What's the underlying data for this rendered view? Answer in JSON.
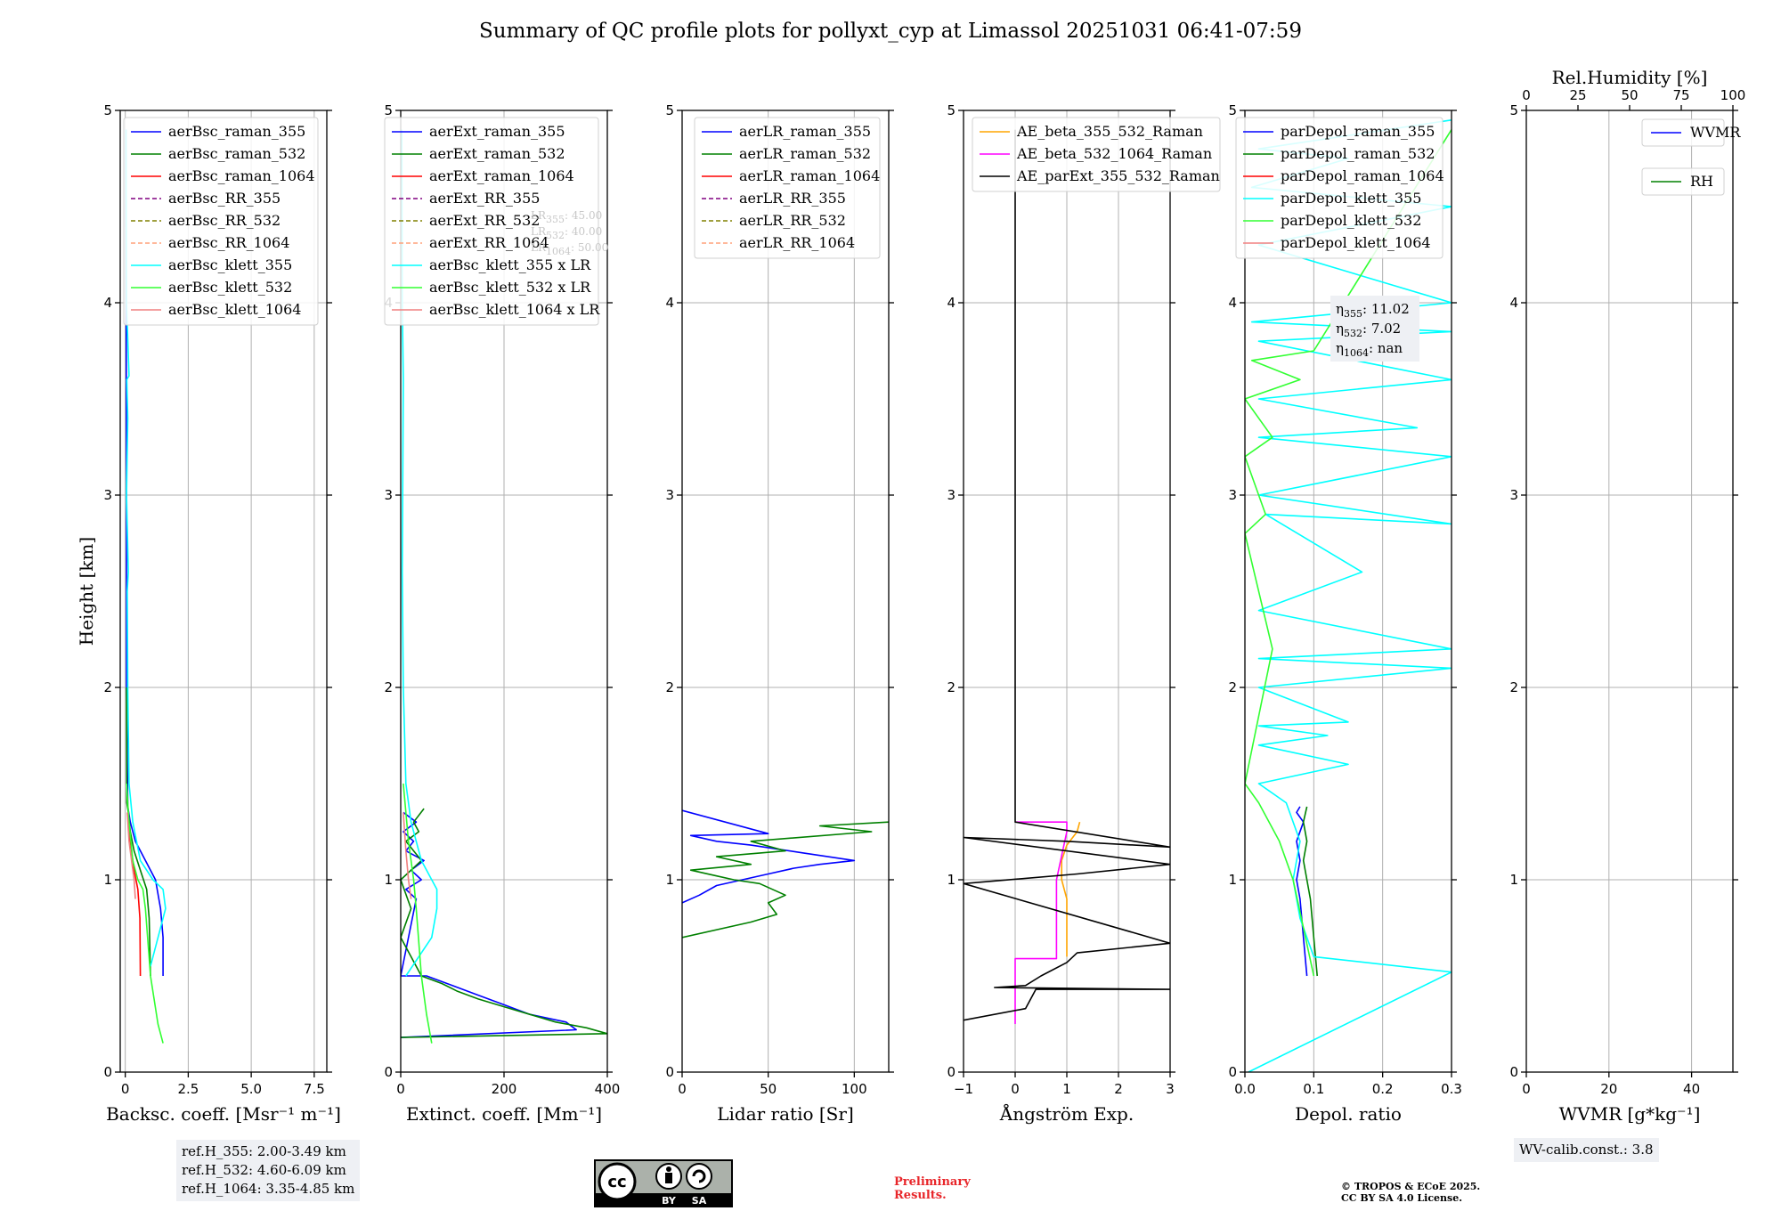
{
  "figure_title": "Summary of QC profile plots for pollyxt_cyp at Limassol 20251031 06:41-07:59",
  "colors": {
    "blue": "#0000ff",
    "green": "#008000",
    "red": "#ff0000",
    "purple": "#800080",
    "olive": "#808000",
    "salmon": "#ffa07a",
    "cyan": "#00ffff",
    "lime": "#32ff32",
    "lightcoral": "#f08080",
    "orange": "#ffa500",
    "magenta": "#ff00ff",
    "black": "#000000",
    "grid": "#b0b0b0",
    "infobox_bg": "#eef0f4",
    "prelim": "#e8262a"
  },
  "chart_data": [
    {
      "type": "line",
      "name": "backscatter",
      "xlabel": "Backsc. coeff. [Msr⁻¹ m⁻¹]",
      "ylabel": "Height [km]",
      "xlim": [
        -0.2,
        8
      ],
      "ylim": [
        0,
        5
      ],
      "xticks": [
        0,
        2.5,
        5,
        7.5
      ],
      "xtick_labels": [
        "0",
        "2.5",
        "5.0",
        "7.5"
      ],
      "yticks": [
        0,
        1,
        2,
        3,
        4,
        5
      ],
      "ytick_labels": [
        "0",
        "1",
        "2",
        "3",
        "4",
        "5"
      ],
      "legend": "top-right",
      "series": [
        {
          "name": "aerBsc_raman_355",
          "color": "blue",
          "dash": false,
          "x": [
            1.5,
            1.5,
            1.4,
            1.2,
            0.8,
            0.4,
            0.2,
            0.1,
            0.05,
            0.05,
            0.04,
            0.03
          ],
          "y": [
            0.5,
            0.7,
            0.85,
            1.0,
            1.1,
            1.2,
            1.3,
            1.38,
            2.0,
            3.0,
            3.8,
            4.9
          ]
        },
        {
          "name": "aerBsc_raman_532",
          "color": "green",
          "dash": false,
          "x": [
            1.0,
            0.95,
            0.85,
            0.6,
            0.35,
            0.2,
            0.12,
            0.06,
            0.05
          ],
          "y": [
            0.5,
            0.8,
            0.95,
            1.05,
            1.15,
            1.25,
            1.35,
            1.4,
            2.0
          ]
        },
        {
          "name": "aerBsc_raman_1064",
          "color": "red",
          "dash": false,
          "x": [
            0.6,
            0.58,
            0.5,
            0.35,
            0.2,
            0.1
          ],
          "y": [
            0.5,
            0.8,
            0.95,
            1.05,
            1.2,
            1.35
          ]
        },
        {
          "name": "aerBsc_RR_355",
          "color": "purple",
          "dash": true,
          "x": [],
          "y": []
        },
        {
          "name": "aerBsc_RR_532",
          "color": "olive",
          "dash": true,
          "x": [],
          "y": []
        },
        {
          "name": "aerBsc_RR_1064",
          "color": "salmon",
          "dash": true,
          "x": [],
          "y": []
        },
        {
          "name": "aerBsc_klett_355",
          "color": "cyan",
          "dash": false,
          "x": [
            1.0,
            1.6,
            1.5,
            1.1,
            0.6,
            0.3,
            0.15,
            0.1,
            0.08,
            0.12,
            0.05,
            0.1,
            0.06,
            0.15,
            0.05,
            0.03
          ],
          "y": [
            0.55,
            0.85,
            0.95,
            1.0,
            1.1,
            1.3,
            1.5,
            2.0,
            2.5,
            2.6,
            3.0,
            3.4,
            3.6,
            3.62,
            4.0,
            4.9
          ]
        },
        {
          "name": "aerBsc_klett_532",
          "color": "lime",
          "dash": false,
          "x": [
            1.5,
            1.3,
            1.0,
            0.8,
            0.7,
            0.5,
            0.3,
            0.15,
            0.05
          ],
          "y": [
            0.15,
            0.25,
            0.5,
            0.85,
            0.95,
            1.0,
            1.1,
            1.3,
            1.5
          ]
        },
        {
          "name": "aerBsc_klett_1064",
          "color": "lightcoral",
          "dash": false,
          "x": [
            0.4,
            0.35,
            0.25,
            0.15,
            0.08
          ],
          "y": [
            0.9,
            1.0,
            1.1,
            1.2,
            1.35
          ]
        }
      ]
    },
    {
      "type": "line",
      "name": "extinction",
      "xlabel": "Extinct. coeff. [Mm⁻¹]",
      "xlim": [
        0,
        400
      ],
      "ylim": [
        0,
        5
      ],
      "xticks": [
        0,
        200,
        400
      ],
      "xtick_labels": [
        "0",
        "200",
        "400"
      ],
      "yticks": [
        0,
        1,
        2,
        3,
        4,
        5
      ],
      "ytick_labels": [
        "0",
        "1",
        "2",
        "3",
        "4",
        "5"
      ],
      "legend": "top-right",
      "annotation": [
        "LR355: 45.00",
        "LR532: 40.00",
        "LR1064: 50.00"
      ],
      "series": [
        {
          "name": "aerExt_raman_355",
          "color": "blue",
          "dash": false,
          "x": [
            0,
            340,
            320,
            250,
            200,
            150,
            100,
            50,
            0,
            30,
            10,
            40,
            20,
            45,
            10,
            25,
            5,
            30,
            5
          ],
          "y": [
            0.18,
            0.22,
            0.26,
            0.3,
            0.35,
            0.4,
            0.45,
            0.5,
            0.5,
            0.9,
            0.95,
            1.0,
            1.05,
            1.1,
            1.15,
            1.2,
            1.25,
            1.3,
            1.35
          ]
        },
        {
          "name": "aerExt_raman_532",
          "color": "green",
          "dash": false,
          "x": [
            0,
            400,
            360,
            300,
            250,
            200,
            150,
            110,
            80,
            40,
            0,
            20,
            0,
            40,
            10,
            35,
            25,
            45
          ],
          "y": [
            0.18,
            0.2,
            0.23,
            0.26,
            0.3,
            0.34,
            0.38,
            0.42,
            0.46,
            0.5,
            0.7,
            0.85,
            1.0,
            1.1,
            1.2,
            1.25,
            1.3,
            1.37
          ]
        },
        {
          "name": "aerExt_raman_1064",
          "color": "red",
          "dash": false,
          "x": [],
          "y": []
        },
        {
          "name": "aerExt_RR_355",
          "color": "purple",
          "dash": true,
          "x": [],
          "y": []
        },
        {
          "name": "aerExt_RR_532",
          "color": "olive",
          "dash": true,
          "x": [],
          "y": []
        },
        {
          "name": "aerExt_RR_1064",
          "color": "salmon",
          "dash": true,
          "x": [],
          "y": []
        },
        {
          "name": "aerBsc_klett_355 x LR",
          "color": "cyan",
          "dash": false,
          "x": [
            10,
            60,
            70,
            70,
            60,
            40,
            20,
            10,
            5,
            3,
            5,
            3,
            2
          ],
          "y": [
            0.5,
            0.7,
            0.85,
            0.95,
            1.0,
            1.1,
            1.3,
            1.5,
            2.0,
            2.6,
            3.6,
            4.0,
            4.9
          ]
        },
        {
          "name": "aerBsc_klett_532 x LR",
          "color": "lime",
          "dash": false,
          "x": [
            60,
            50,
            40,
            30,
            25,
            15,
            5
          ],
          "y": [
            0.15,
            0.3,
            0.5,
            0.85,
            1.0,
            1.2,
            1.5
          ]
        },
        {
          "name": "aerBsc_klett_1064 x LR",
          "color": "lightcoral",
          "dash": false,
          "x": [
            20,
            15,
            10,
            5
          ],
          "y": [
            0.9,
            1.0,
            1.15,
            1.35
          ]
        }
      ]
    },
    {
      "type": "line",
      "name": "lidar_ratio",
      "xlabel": "Lidar ratio [Sr]",
      "xlim": [
        0,
        120
      ],
      "ylim": [
        0,
        5
      ],
      "xticks": [
        0,
        50,
        100
      ],
      "xtick_labels": [
        "0",
        "50",
        "100"
      ],
      "yticks": [
        0,
        1,
        2,
        3,
        4,
        5
      ],
      "ytick_labels": [
        "0",
        "1",
        "2",
        "3",
        "4",
        "5"
      ],
      "legend": "top-right",
      "series": [
        {
          "name": "aerLR_raman_355",
          "color": "blue",
          "dash": false,
          "x": [
            0,
            10,
            20,
            35,
            50,
            65,
            80,
            100,
            70,
            55,
            40,
            20,
            5,
            50,
            0
          ],
          "y": [
            0.88,
            0.92,
            0.97,
            1.0,
            1.03,
            1.06,
            1.08,
            1.1,
            1.14,
            1.16,
            1.18,
            1.2,
            1.23,
            1.24,
            1.36
          ]
        },
        {
          "name": "aerLR_raman_532",
          "color": "green",
          "dash": false,
          "x": [
            0,
            40,
            55,
            50,
            60,
            45,
            30,
            20,
            5,
            40,
            20,
            60,
            40,
            110,
            80,
            120
          ],
          "y": [
            0.7,
            0.78,
            0.82,
            0.88,
            0.92,
            0.98,
            1.0,
            1.02,
            1.05,
            1.08,
            1.12,
            1.15,
            1.2,
            1.25,
            1.28,
            1.3
          ]
        },
        {
          "name": "aerLR_raman_1064",
          "color": "red",
          "dash": false,
          "x": [],
          "y": []
        },
        {
          "name": "aerLR_RR_355",
          "color": "purple",
          "dash": true,
          "x": [],
          "y": []
        },
        {
          "name": "aerLR_RR_532",
          "color": "olive",
          "dash": true,
          "x": [],
          "y": []
        },
        {
          "name": "aerLR_RR_1064",
          "color": "salmon",
          "dash": true,
          "x": [],
          "y": []
        }
      ]
    },
    {
      "type": "line",
      "name": "angstrom",
      "xlabel": "Ångström Exp.",
      "xlim": [
        -1,
        3
      ],
      "ylim": [
        0,
        5
      ],
      "xticks": [
        -1,
        0,
        1,
        2,
        3
      ],
      "xtick_labels": [
        "−1",
        "0",
        "1",
        "2",
        "3"
      ],
      "yticks": [
        0,
        1,
        2,
        3,
        4,
        5
      ],
      "ytick_labels": [
        "0",
        "1",
        "2",
        "3",
        "4",
        "5"
      ],
      "legend": "top-left",
      "series": [
        {
          "name": "AE_beta_355_532_Raman",
          "color": "orange",
          "dash": false,
          "x": [
            1.0,
            1.0,
            0.9,
            0.9,
            1.0,
            1.2,
            1.25
          ],
          "y": [
            0.6,
            0.9,
            1.0,
            1.1,
            1.18,
            1.25,
            1.3
          ]
        },
        {
          "name": "AE_beta_532_1064_Raman",
          "color": "magenta",
          "dash": false,
          "x": [
            0,
            0,
            0.8,
            0.8,
            1.0,
            1.0,
            0,
            0
          ],
          "y": [
            0.25,
            0.59,
            0.59,
            1.0,
            1.25,
            1.3,
            1.3,
            1.3
          ]
        },
        {
          "name": "AE_parExt_355_532_Raman",
          "color": "black",
          "dash": false,
          "x": [
            0,
            0,
            3.0,
            1.0,
            -1.0,
            3.0,
            1.2,
            -1.0,
            3.0,
            1.2,
            1.0,
            0.5,
            0.2,
            -0.4,
            3.0,
            0.4,
            0.2,
            -1.0
          ],
          "y": [
            4.9,
            1.3,
            1.17,
            1.2,
            1.22,
            1.08,
            1.03,
            0.98,
            0.67,
            0.62,
            0.57,
            0.5,
            0.45,
            0.44,
            0.43,
            0.43,
            0.33,
            0.27
          ]
        }
      ]
    },
    {
      "type": "line",
      "name": "depolarization",
      "xlabel": "Depol. ratio",
      "xlim": [
        0,
        0.3
      ],
      "ylim": [
        0,
        5
      ],
      "xticks": [
        0,
        0.1,
        0.2,
        0.3
      ],
      "xtick_labels": [
        "0.0",
        "0.1",
        "0.2",
        "0.3"
      ],
      "yticks": [
        0,
        1,
        2,
        3,
        4,
        5
      ],
      "ytick_labels": [
        "0",
        "1",
        "2",
        "3",
        "4",
        "5"
      ],
      "legend": "top-right",
      "annotation": [
        "η355: 11.02",
        "η532: 7.02",
        "η1064: nan"
      ],
      "series": [
        {
          "name": "parDepol_raman_355",
          "color": "blue",
          "dash": false,
          "x": [
            0.09,
            0.085,
            0.08,
            0.075,
            0.08,
            0.075,
            0.085,
            0.075,
            0.08
          ],
          "y": [
            0.5,
            0.7,
            0.9,
            1.0,
            1.1,
            1.2,
            1.3,
            1.35,
            1.38
          ]
        },
        {
          "name": "parDepol_raman_532",
          "color": "green",
          "dash": false,
          "x": [
            0.105,
            0.1,
            0.095,
            0.09,
            0.085,
            0.09,
            0.085,
            0.09
          ],
          "y": [
            0.5,
            0.7,
            0.9,
            1.0,
            1.1,
            1.2,
            1.3,
            1.38
          ]
        },
        {
          "name": "parDepol_raman_1064",
          "color": "red",
          "dash": false,
          "x": [],
          "y": []
        },
        {
          "name": "parDepol_klett_355",
          "color": "cyan",
          "dash": false,
          "x": [
            0.005,
            0.3,
            0.1,
            0.08,
            0.07,
            0.08,
            0.06,
            0.02,
            0.15,
            0.02,
            0.12,
            0.02,
            0.15,
            0.02,
            0.3,
            0.02,
            0.3,
            0.02,
            0.17,
            0.03,
            0.3,
            0.02,
            0.3,
            0.02,
            0.25,
            0.02,
            0.3,
            0.02,
            0.3,
            0.01,
            0.3,
            0.02,
            0.3,
            0.01,
            0.15,
            0.02,
            0.3
          ],
          "y": [
            0.0,
            0.52,
            0.6,
            0.8,
            1.0,
            1.2,
            1.4,
            1.5,
            1.6,
            1.7,
            1.75,
            1.8,
            1.82,
            2.0,
            2.1,
            2.15,
            2.2,
            2.4,
            2.6,
            2.9,
            2.85,
            3.0,
            3.2,
            3.3,
            3.35,
            3.5,
            3.6,
            3.8,
            3.85,
            3.9,
            4.0,
            4.3,
            4.5,
            4.6,
            4.75,
            4.8,
            4.95
          ]
        },
        {
          "name": "parDepol_klett_532",
          "color": "lime",
          "dash": false,
          "x": [
            0.1,
            0.07,
            0.05,
            0.02,
            0.0,
            0.04,
            0.0,
            0.03,
            0.0,
            0.04,
            0.0,
            0.08,
            0.01,
            0.1,
            0.3
          ],
          "y": [
            0.5,
            1.0,
            1.2,
            1.4,
            1.5,
            2.2,
            2.8,
            2.9,
            3.2,
            3.3,
            3.5,
            3.6,
            3.7,
            3.75,
            4.9
          ]
        },
        {
          "name": "parDepol_klett_1064",
          "color": "lightcoral",
          "dash": false,
          "x": [],
          "y": []
        }
      ]
    },
    {
      "type": "line",
      "name": "wvmr",
      "xlabel": "WVMR [g*kg⁻¹]",
      "top_xlabel": "Rel.Humidity [%]",
      "xlim": [
        0,
        50
      ],
      "ylim": [
        0,
        5
      ],
      "xticks": [
        0,
        20,
        40
      ],
      "xtick_labels": [
        "0",
        "20",
        "40"
      ],
      "top_xticks": [
        0,
        25,
        50,
        75,
        100
      ],
      "top_xtick_labels": [
        "0",
        "25",
        "50",
        "75",
        "100"
      ],
      "top_xlim": [
        0,
        100
      ],
      "yticks": [
        0,
        1,
        2,
        3,
        4,
        5
      ],
      "ytick_labels": [
        "0",
        "1",
        "2",
        "3",
        "4",
        "5"
      ],
      "legend": "top-right",
      "series": [
        {
          "name": "WVMR",
          "color": "blue",
          "dash": false,
          "x": [],
          "y": []
        },
        {
          "name": "RH",
          "color": "green",
          "dash": false,
          "x": [],
          "y": []
        }
      ]
    }
  ],
  "ref_heights": [
    "ref.H_355: 2.00-3.49 km",
    "ref.H_532: 4.60-6.09 km",
    "ref.H_1064: 3.35-4.85 km"
  ],
  "wv_calib": "WV-calib.const.: 3.8",
  "license_badge": {
    "cc": "cc",
    "by": "BY",
    "sa": "SA"
  },
  "preliminary": [
    "Preliminary",
    "Results."
  ],
  "copyright": [
    "© TROPOS & ECoE 2025.",
    "CC BY SA 4.0 License."
  ]
}
